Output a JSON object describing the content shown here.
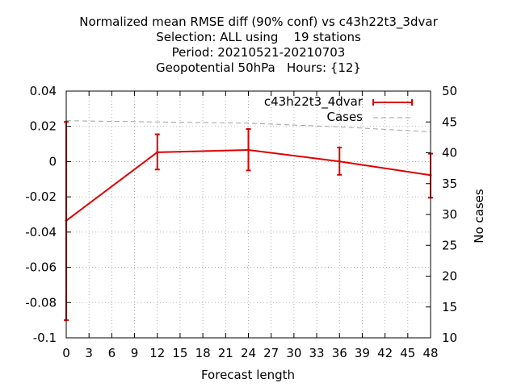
{
  "chart_data": {
    "type": "line",
    "title_lines": [
      "Normalized mean RMSE diff (90% conf) vs c43h22t3_3dvar",
      "Selection: ALL using    19 stations",
      "Period: 20210521-20210703",
      "Geopotential 50hPa   Hours: {12}"
    ],
    "xlabel": "Forecast length",
    "ylabel": "",
    "y2label": "No cases",
    "xlim": [
      0,
      48
    ],
    "ylim": [
      -0.1,
      0.04
    ],
    "y2lim": [
      10,
      50
    ],
    "x_ticks": [
      0,
      3,
      6,
      9,
      12,
      15,
      18,
      21,
      24,
      27,
      30,
      33,
      36,
      39,
      42,
      45,
      48
    ],
    "x_tick_labels": [
      "0",
      "3",
      "6",
      "9",
      "12",
      "15",
      "18",
      "21",
      "24",
      "27",
      "30",
      "33",
      "36",
      "39",
      "42",
      "45",
      "48"
    ],
    "y_ticks": [
      0.04,
      0.02,
      0,
      -0.02,
      -0.04,
      -0.06,
      -0.08,
      -0.1
    ],
    "y_tick_labels": [
      "0.04",
      "0.02",
      "0",
      "-0.02",
      "-0.04",
      "-0.06",
      "-0.08",
      "-0.1"
    ],
    "y2_ticks": [
      50,
      45,
      40,
      35,
      30,
      25,
      20,
      15,
      10
    ],
    "y2_tick_labels": [
      "50",
      "45",
      "40",
      "35",
      "30",
      "25",
      "20",
      "15",
      "10"
    ],
    "grid": true,
    "legend_position": "top-right",
    "series": [
      {
        "name": "c43h22t3_4dvar",
        "color": "#dd0000",
        "axis": "left",
        "x": [
          0,
          12,
          24,
          36,
          48
        ],
        "y": [
          -0.0335,
          0.0053,
          0.0066,
          0.0001,
          -0.0077
        ],
        "err_low": [
          -0.09,
          -0.0045,
          -0.005,
          -0.0075,
          -0.0205
        ],
        "err_high": [
          0.0225,
          0.0155,
          0.0185,
          0.008,
          0.0045
        ]
      },
      {
        "name": "Cases",
        "color": "#a0a0a0",
        "axis": "right",
        "style": "dashed",
        "x": [
          0,
          12,
          24,
          36,
          48
        ],
        "y": [
          45.2,
          45.0,
          44.8,
          44.2,
          43.4
        ]
      }
    ]
  }
}
